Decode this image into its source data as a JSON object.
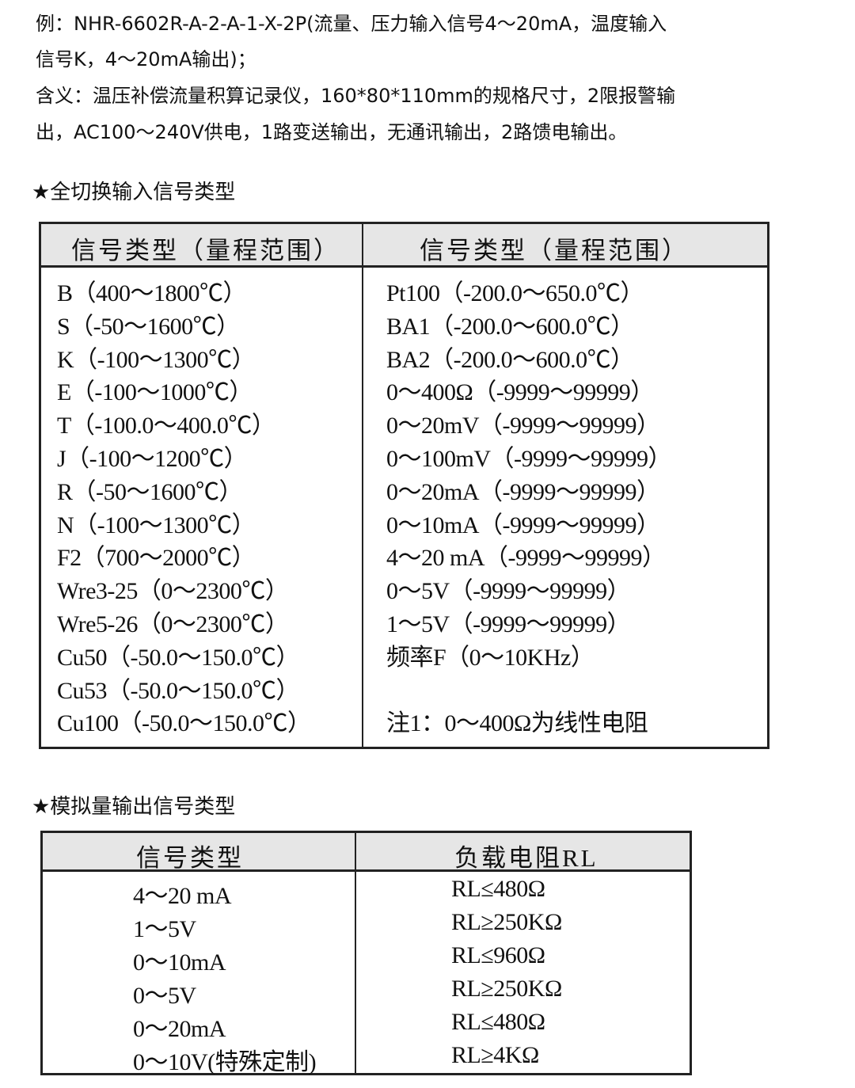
{
  "intro": {
    "lines": [
      "例：NHR-6602R-A-2-A-1-X-2P(流量、压力输入信号4～20mA，温度输入",
      "信号K，4～20mA输出)；",
      "含义：温压补偿流量积算记录仪，160*80*110mm的规格尺寸，2限报警输",
      "出，AC100～240V供电，1路变送输出，无通讯输出，2路馈电输出。"
    ]
  },
  "input_section": {
    "title": "★全切换输入信号类型",
    "headers": [
      "信号类型（量程范围）",
      "信号类型（量程范围）"
    ],
    "left": [
      "B（400～1800℃）",
      "S（-50～1600℃）",
      "K（-100～1300℃）",
      "E（-100～1000℃）",
      "T（-100.0～400.0℃）",
      "J（-100～1200℃）",
      "R（-50～1600℃）",
      "N（-100～1300℃）",
      "F2（700～2000℃）",
      "Wre3-25（0～2300℃）",
      "Wre5-26（0～2300℃）",
      "Cu50（-50.0～150.0℃）",
      "Cu53（-50.0～150.0℃）",
      "Cu100（-50.0～150.0℃）"
    ],
    "right": [
      "Pt100（-200.0～650.0℃）",
      "BA1（-200.0～600.0℃）",
      "BA2（-200.0～600.0℃）",
      "0～400Ω（-9999～99999）",
      "0～20mV（-9999～99999）",
      "0～100mV（-9999～99999）",
      "0～20mA（-9999～99999）",
      "0～10mA（-9999～99999）",
      "4～20 mA（-9999～99999）",
      "0～5V（-9999～99999）",
      "1～5V（-9999～99999）",
      "频率F（0～10KHz）",
      "",
      "注1：0～400Ω为线性电阻"
    ]
  },
  "output_section": {
    "title": "★模拟量输出信号类型",
    "headers": [
      "信号类型",
      "负载电阻RL"
    ],
    "left": [
      "4～20 mA",
      "1～5V",
      "0～10mA",
      "0～5V",
      "0～20mA",
      "0～10V(特殊定制)"
    ],
    "right": [
      "RL≤480Ω",
      "RL≥250KΩ",
      "RL≤960Ω",
      "RL≥250KΩ",
      "RL≤480Ω",
      "RL≥4KΩ"
    ]
  }
}
